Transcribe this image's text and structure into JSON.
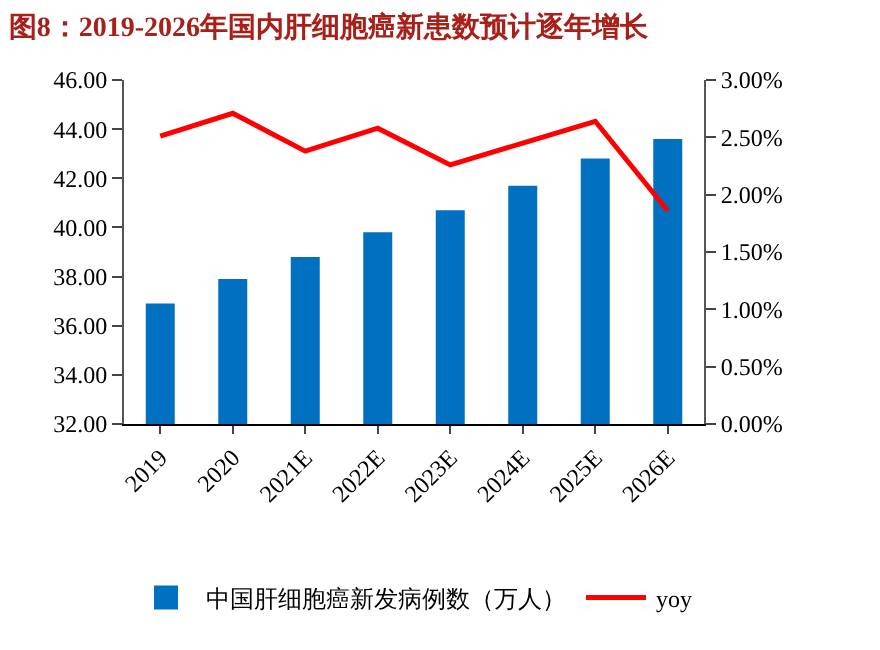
{
  "chart_data": {
    "type": "bar",
    "title": "图8：2019-2026年国内肝细胞癌新患数预计逐年增长",
    "categories": [
      "2019",
      "2020",
      "2021E",
      "2022E",
      "2023E",
      "2024E",
      "2025E",
      "2026E"
    ],
    "series": [
      {
        "name": "中国肝细胞癌新发病例数（万人）",
        "color": "#0070c0",
        "values": [
          36.9,
          37.9,
          38.8,
          39.8,
          40.7,
          41.7,
          42.8,
          43.6
        ]
      },
      {
        "name": "yoy",
        "type": "line",
        "axis": "y2",
        "color": "#ff0000",
        "values": [
          2.51,
          2.71,
          2.38,
          2.58,
          2.26,
          2.45,
          2.64,
          1.86
        ]
      }
    ],
    "ylim": [
      32,
      46
    ],
    "yticks": [
      {
        "value": 32,
        "label": "32.00"
      },
      {
        "value": 34,
        "label": "34.00"
      },
      {
        "value": 36,
        "label": "36.00"
      },
      {
        "value": 38,
        "label": "38.00"
      },
      {
        "value": 40,
        "label": "40.00"
      },
      {
        "value": 42,
        "label": "42.00"
      },
      {
        "value": 44,
        "label": "44.00"
      },
      {
        "value": 46,
        "label": "46.00"
      }
    ],
    "y2lim": [
      0,
      3
    ],
    "y2ticks": [
      {
        "value": 0,
        "label": "0.00%"
      },
      {
        "value": 0.5,
        "label": "0.50%"
      },
      {
        "value": 1,
        "label": "1.00%"
      },
      {
        "value": 1.5,
        "label": "1.50%"
      },
      {
        "value": 2,
        "label": "2.00%"
      },
      {
        "value": 2.5,
        "label": "2.50%"
      },
      {
        "value": 3,
        "label": "3.00%"
      }
    ],
    "legend": "bottom",
    "marker": "none"
  }
}
